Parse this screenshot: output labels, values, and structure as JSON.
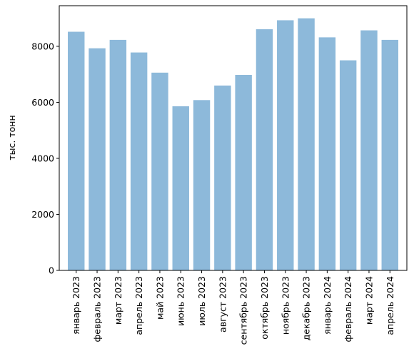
{
  "chart_data": {
    "type": "bar",
    "title": "",
    "xlabel": "",
    "ylabel": "тыс. тонн",
    "categories": [
      "январь 2023",
      "февраль 2023",
      "март 2023",
      "апрель 2023",
      "май 2023",
      "июнь 2023",
      "июль 2023",
      "август 2023",
      "сентябрь 2023",
      "октябрь 2023",
      "ноябрь 2023",
      "декабрь 2023",
      "январь 2024",
      "февраль 2024",
      "март 2024",
      "апрель 2024"
    ],
    "values": [
      8520,
      7930,
      8230,
      7780,
      7060,
      5860,
      6080,
      6600,
      6980,
      8610,
      8930,
      9000,
      8320,
      7500,
      8570,
      8230
    ],
    "ylim": [
      0,
      9450
    ],
    "yticks": [
      0,
      2000,
      4000,
      6000,
      8000
    ],
    "ytick_labels": [
      "0",
      "2000",
      "4000",
      "6000",
      "8000"
    ],
    "bar_color": "#8db9da",
    "grid": false,
    "legend": "none"
  }
}
